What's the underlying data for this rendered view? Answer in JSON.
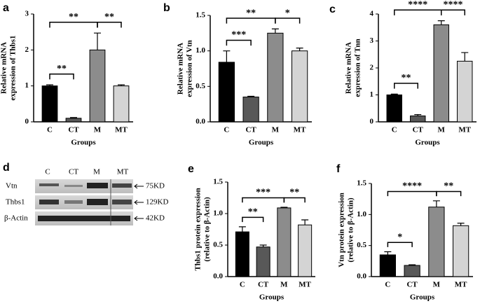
{
  "chart_data": [
    {
      "type": "bar",
      "label": "a",
      "ylabel": [
        "Relative mRNA",
        "expression of Thbs1"
      ],
      "xlabel": "Groups",
      "categories": [
        "C",
        "CT",
        "M",
        "MT"
      ],
      "values": [
        1.0,
        0.1,
        2.0,
        1.0
      ],
      "errors": [
        0.03,
        0.02,
        0.47,
        0.03
      ],
      "colors": [
        "#000000",
        "#585858",
        "#8c8c8c",
        "#d4d4d4"
      ],
      "ylim": [
        0,
        3
      ],
      "yticks": [
        0,
        1,
        2,
        3
      ],
      "annotations": [
        {
          "text": "**",
          "from": 0,
          "to": 1
        },
        {
          "text": "**",
          "from": 0,
          "to": 2
        },
        {
          "text": "**",
          "from": 2,
          "to": 3
        }
      ]
    },
    {
      "type": "bar",
      "label": "b",
      "ylabel": [
        "Relative mRNA",
        "expression of Vtn"
      ],
      "xlabel": "Groups",
      "categories": [
        "C",
        "CT",
        "M",
        "MT"
      ],
      "values": [
        0.84,
        0.35,
        1.25,
        1.0
      ],
      "errors": [
        0.16,
        0.01,
        0.06,
        0.04
      ],
      "colors": [
        "#000000",
        "#585858",
        "#8c8c8c",
        "#d4d4d4"
      ],
      "ylim": [
        0,
        1.5
      ],
      "yticks": [
        {
          "value": 0,
          "label": "0.0"
        },
        {
          "value": 0.5,
          "label": "0.5"
        },
        {
          "value": 1,
          "label": "1.0"
        },
        {
          "value": 1.5,
          "label": "1.5"
        }
      ],
      "annotations": [
        {
          "text": "***",
          "from": 0,
          "to": 1
        },
        {
          "text": "**",
          "from": 0,
          "to": 2
        },
        {
          "text": "*",
          "from": 2,
          "to": 3
        }
      ]
    },
    {
      "type": "bar",
      "label": "c",
      "ylabel": [
        "Relative mRNA",
        "expression of Tnn"
      ],
      "xlabel": "Groups",
      "categories": [
        "C",
        "CT",
        "M",
        "MT"
      ],
      "values": [
        1.0,
        0.22,
        3.6,
        2.25
      ],
      "errors": [
        0.03,
        0.05,
        0.15,
        0.32
      ],
      "colors": [
        "#000000",
        "#585858",
        "#8c8c8c",
        "#d4d4d4"
      ],
      "ylim": [
        0,
        4
      ],
      "yticks": [
        0,
        1,
        2,
        3,
        4
      ],
      "annotations": [
        {
          "text": "**",
          "from": 0,
          "to": 1
        },
        {
          "text": "****",
          "from": 0,
          "to": 2
        },
        {
          "text": "****",
          "from": 2,
          "to": 3
        }
      ]
    },
    {
      "type": "bar",
      "label": "e",
      "ylabel": [
        "Thbs1 protein expression",
        "(relative to β-Actin)"
      ],
      "xlabel": "Groups",
      "categories": [
        "C",
        "CT",
        "M",
        "MT"
      ],
      "values": [
        0.71,
        0.47,
        1.09,
        0.82
      ],
      "errors": [
        0.08,
        0.03,
        0.01,
        0.08
      ],
      "colors": [
        "#000000",
        "#585858",
        "#8c8c8c",
        "#d4d4d4"
      ],
      "ylim": [
        0,
        1.5
      ],
      "yticks": [
        {
          "value": 0,
          "label": "0.0"
        },
        {
          "value": 0.5,
          "label": "0.5"
        },
        {
          "value": 1,
          "label": "1.0"
        },
        {
          "value": 1.5,
          "label": "1.5"
        }
      ],
      "annotations": [
        {
          "text": "**",
          "from": 0,
          "to": 1
        },
        {
          "text": "***",
          "from": 0,
          "to": 2
        },
        {
          "text": "**",
          "from": 2,
          "to": 3
        }
      ]
    },
    {
      "type": "bar",
      "label": "f",
      "ylabel": [
        "Vtn protein expression",
        "(relative to β-Actin)"
      ],
      "xlabel": "Groups",
      "categories": [
        "C",
        "CT",
        "M",
        "MT"
      ],
      "values": [
        0.35,
        0.18,
        1.12,
        0.82
      ],
      "errors": [
        0.05,
        0.01,
        0.1,
        0.04
      ],
      "colors": [
        "#000000",
        "#585858",
        "#8c8c8c",
        "#d4d4d4"
      ],
      "ylim": [
        0,
        1.5
      ],
      "yticks": [
        {
          "value": 0,
          "label": "0.0"
        },
        {
          "value": 0.5,
          "label": "0.5"
        },
        {
          "value": 1,
          "label": "1.0"
        },
        {
          "value": 1.5,
          "label": "1.5"
        }
      ],
      "annotations": [
        {
          "text": "*",
          "from": 0,
          "to": 1
        },
        {
          "text": "****",
          "from": 0,
          "to": 2
        },
        {
          "text": "**",
          "from": 2,
          "to": 3
        }
      ]
    }
  ],
  "blot": {
    "label": "d",
    "columns": [
      "C",
      "CT",
      "M",
      "MT"
    ],
    "rows": [
      "Vtn",
      "Thbs1",
      "β-Actin"
    ],
    "sizes": [
      "75KD",
      "129KD",
      "42KD"
    ]
  }
}
